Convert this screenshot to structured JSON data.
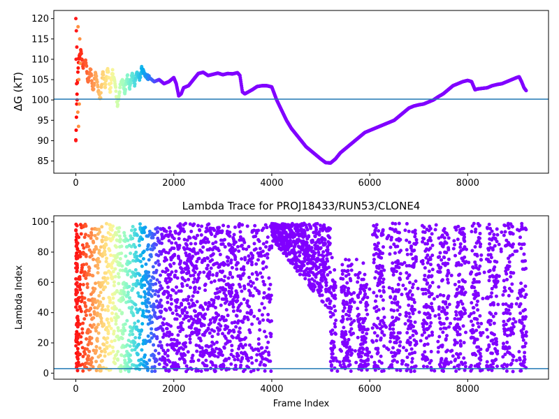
{
  "chart_data": [
    {
      "type": "scatter",
      "title": "",
      "xlabel": "",
      "ylabel": "ΔG (kT)",
      "xlim": [
        -450,
        9650
      ],
      "ylim": [
        82,
        122
      ],
      "xticks": [
        0,
        2000,
        4000,
        6000,
        8000
      ],
      "yticks": [
        85,
        90,
        95,
        100,
        105,
        110,
        115,
        120
      ],
      "xtick_labels": [
        "0",
        "2000",
        "4000",
        "6000",
        "8000"
      ],
      "ytick_labels": [
        "85",
        "90",
        "95",
        "100",
        "105",
        "110",
        "115",
        "120"
      ],
      "colormap": "rainbow",
      "color_encodes": "lambda index",
      "reference_line": {
        "y": 100.2,
        "color": "#1f77b4"
      },
      "grid": false,
      "trace_points": [
        [
          0,
          90
        ],
        [
          30,
          104
        ],
        [
          60,
          110
        ],
        [
          100,
          112
        ],
        [
          150,
          108
        ],
        [
          200,
          110
        ],
        [
          250,
          104
        ],
        [
          300,
          108
        ],
        [
          350,
          102
        ],
        [
          400,
          107
        ],
        [
          450,
          103
        ],
        [
          500,
          100
        ],
        [
          550,
          107
        ],
        [
          600,
          103
        ],
        [
          650,
          108
        ],
        [
          700,
          102
        ],
        [
          750,
          107
        ],
        [
          800,
          104
        ],
        [
          850,
          98.5
        ],
        [
          900,
          103
        ],
        [
          950,
          105
        ],
        [
          1000,
          102
        ],
        [
          1050,
          106
        ],
        [
          1100,
          103
        ],
        [
          1150,
          106.5
        ],
        [
          1200,
          104
        ],
        [
          1250,
          107
        ],
        [
          1300,
          105
        ],
        [
          1350,
          108
        ],
        [
          1400,
          106
        ],
        [
          1500,
          105.5
        ],
        [
          1600,
          104.5
        ],
        [
          1700,
          105
        ],
        [
          1800,
          104
        ],
        [
          1900,
          104.5
        ],
        [
          2000,
          105.5
        ],
        [
          2050,
          104
        ],
        [
          2100,
          101
        ],
        [
          2150,
          101.5
        ],
        [
          2200,
          103
        ],
        [
          2300,
          103.5
        ],
        [
          2400,
          105
        ],
        [
          2500,
          106.5
        ],
        [
          2600,
          106.8
        ],
        [
          2700,
          106
        ],
        [
          2800,
          106.3
        ],
        [
          2900,
          106.6
        ],
        [
          3000,
          106.2
        ],
        [
          3100,
          106.5
        ],
        [
          3200,
          106.4
        ],
        [
          3300,
          106.7
        ],
        [
          3350,
          106
        ],
        [
          3400,
          102
        ],
        [
          3450,
          101.5
        ],
        [
          3600,
          102.5
        ],
        [
          3700,
          103.3
        ],
        [
          3800,
          103.5
        ],
        [
          3900,
          103.5
        ],
        [
          4000,
          103.2
        ],
        [
          4100,
          100
        ],
        [
          4200,
          97.5
        ],
        [
          4300,
          95
        ],
        [
          4400,
          93
        ],
        [
          4500,
          91.5
        ],
        [
          4600,
          90
        ],
        [
          4700,
          88.5
        ],
        [
          4800,
          87.5
        ],
        [
          4900,
          86.5
        ],
        [
          5000,
          85.5
        ],
        [
          5100,
          84.6
        ],
        [
          5200,
          84.5
        ],
        [
          5300,
          85.5
        ],
        [
          5400,
          87
        ],
        [
          5500,
          88
        ],
        [
          5600,
          89
        ],
        [
          5700,
          90
        ],
        [
          5800,
          91
        ],
        [
          5900,
          92
        ],
        [
          6000,
          92.5
        ],
        [
          6100,
          93
        ],
        [
          6200,
          93.5
        ],
        [
          6300,
          94
        ],
        [
          6400,
          94.5
        ],
        [
          6500,
          95
        ],
        [
          6600,
          96
        ],
        [
          6700,
          97
        ],
        [
          6800,
          98
        ],
        [
          6900,
          98.5
        ],
        [
          7000,
          98.8
        ],
        [
          7100,
          99
        ],
        [
          7200,
          99.5
        ],
        [
          7300,
          100
        ],
        [
          7400,
          100.8
        ],
        [
          7500,
          101.5
        ],
        [
          7600,
          102.5
        ],
        [
          7700,
          103.5
        ],
        [
          7800,
          104
        ],
        [
          7900,
          104.5
        ],
        [
          8000,
          104.8
        ],
        [
          8080,
          104.5
        ],
        [
          8150,
          102.5
        ],
        [
          8200,
          102.7
        ],
        [
          8400,
          103
        ],
        [
          8500,
          103.5
        ],
        [
          8600,
          103.8
        ],
        [
          8700,
          104
        ],
        [
          8800,
          104.5
        ],
        [
          8900,
          105
        ],
        [
          9000,
          105.5
        ],
        [
          9050,
          105.7
        ],
        [
          9100,
          104.5
        ],
        [
          9150,
          103
        ],
        [
          9200,
          102.2
        ]
      ],
      "early_scatter_points": [
        [
          0,
          120
        ],
        [
          10,
          117
        ],
        [
          20,
          113
        ],
        [
          5,
          110
        ],
        [
          15,
          104
        ],
        [
          25,
          100
        ],
        [
          40,
          97
        ],
        [
          55,
          93.5
        ],
        [
          70,
          99
        ],
        [
          45,
          118
        ],
        [
          80,
          115
        ],
        [
          90,
          109
        ],
        [
          0,
          90
        ],
        [
          60,
          105
        ]
      ]
    },
    {
      "type": "scatter",
      "title": "Lambda Trace for PROJ18433/RUN53/CLONE4",
      "xlabel": "Frame Index",
      "ylabel": "Lambda Index",
      "xlim": [
        -450,
        9650
      ],
      "ylim": [
        -4,
        104
      ],
      "xticks": [
        0,
        2000,
        4000,
        6000,
        8000
      ],
      "yticks": [
        0,
        20,
        40,
        60,
        80,
        100
      ],
      "xtick_labels": [
        "0",
        "2000",
        "4000",
        "6000",
        "8000"
      ],
      "ytick_labels": [
        "0",
        "20",
        "40",
        "60",
        "80",
        "100"
      ],
      "colormap": "rainbow",
      "color_encodes": "frame index",
      "reference_line": {
        "y": 3,
        "color": "#1f77b4"
      },
      "grid": false,
      "frame_count": 9200,
      "lambda_range": [
        0,
        99
      ],
      "segments": [
        {
          "x": [
            0,
            3400
          ],
          "lambda": [
            1,
            99
          ]
        },
        {
          "x": [
            3400,
            4000
          ],
          "lambda": [
            1,
            99
          ]
        },
        {
          "x": [
            4000,
            5200
          ],
          "lambda": [
            40,
            99
          ]
        },
        {
          "x": [
            5200,
            9200
          ],
          "lambda": [
            1,
            99
          ]
        }
      ]
    }
  ]
}
